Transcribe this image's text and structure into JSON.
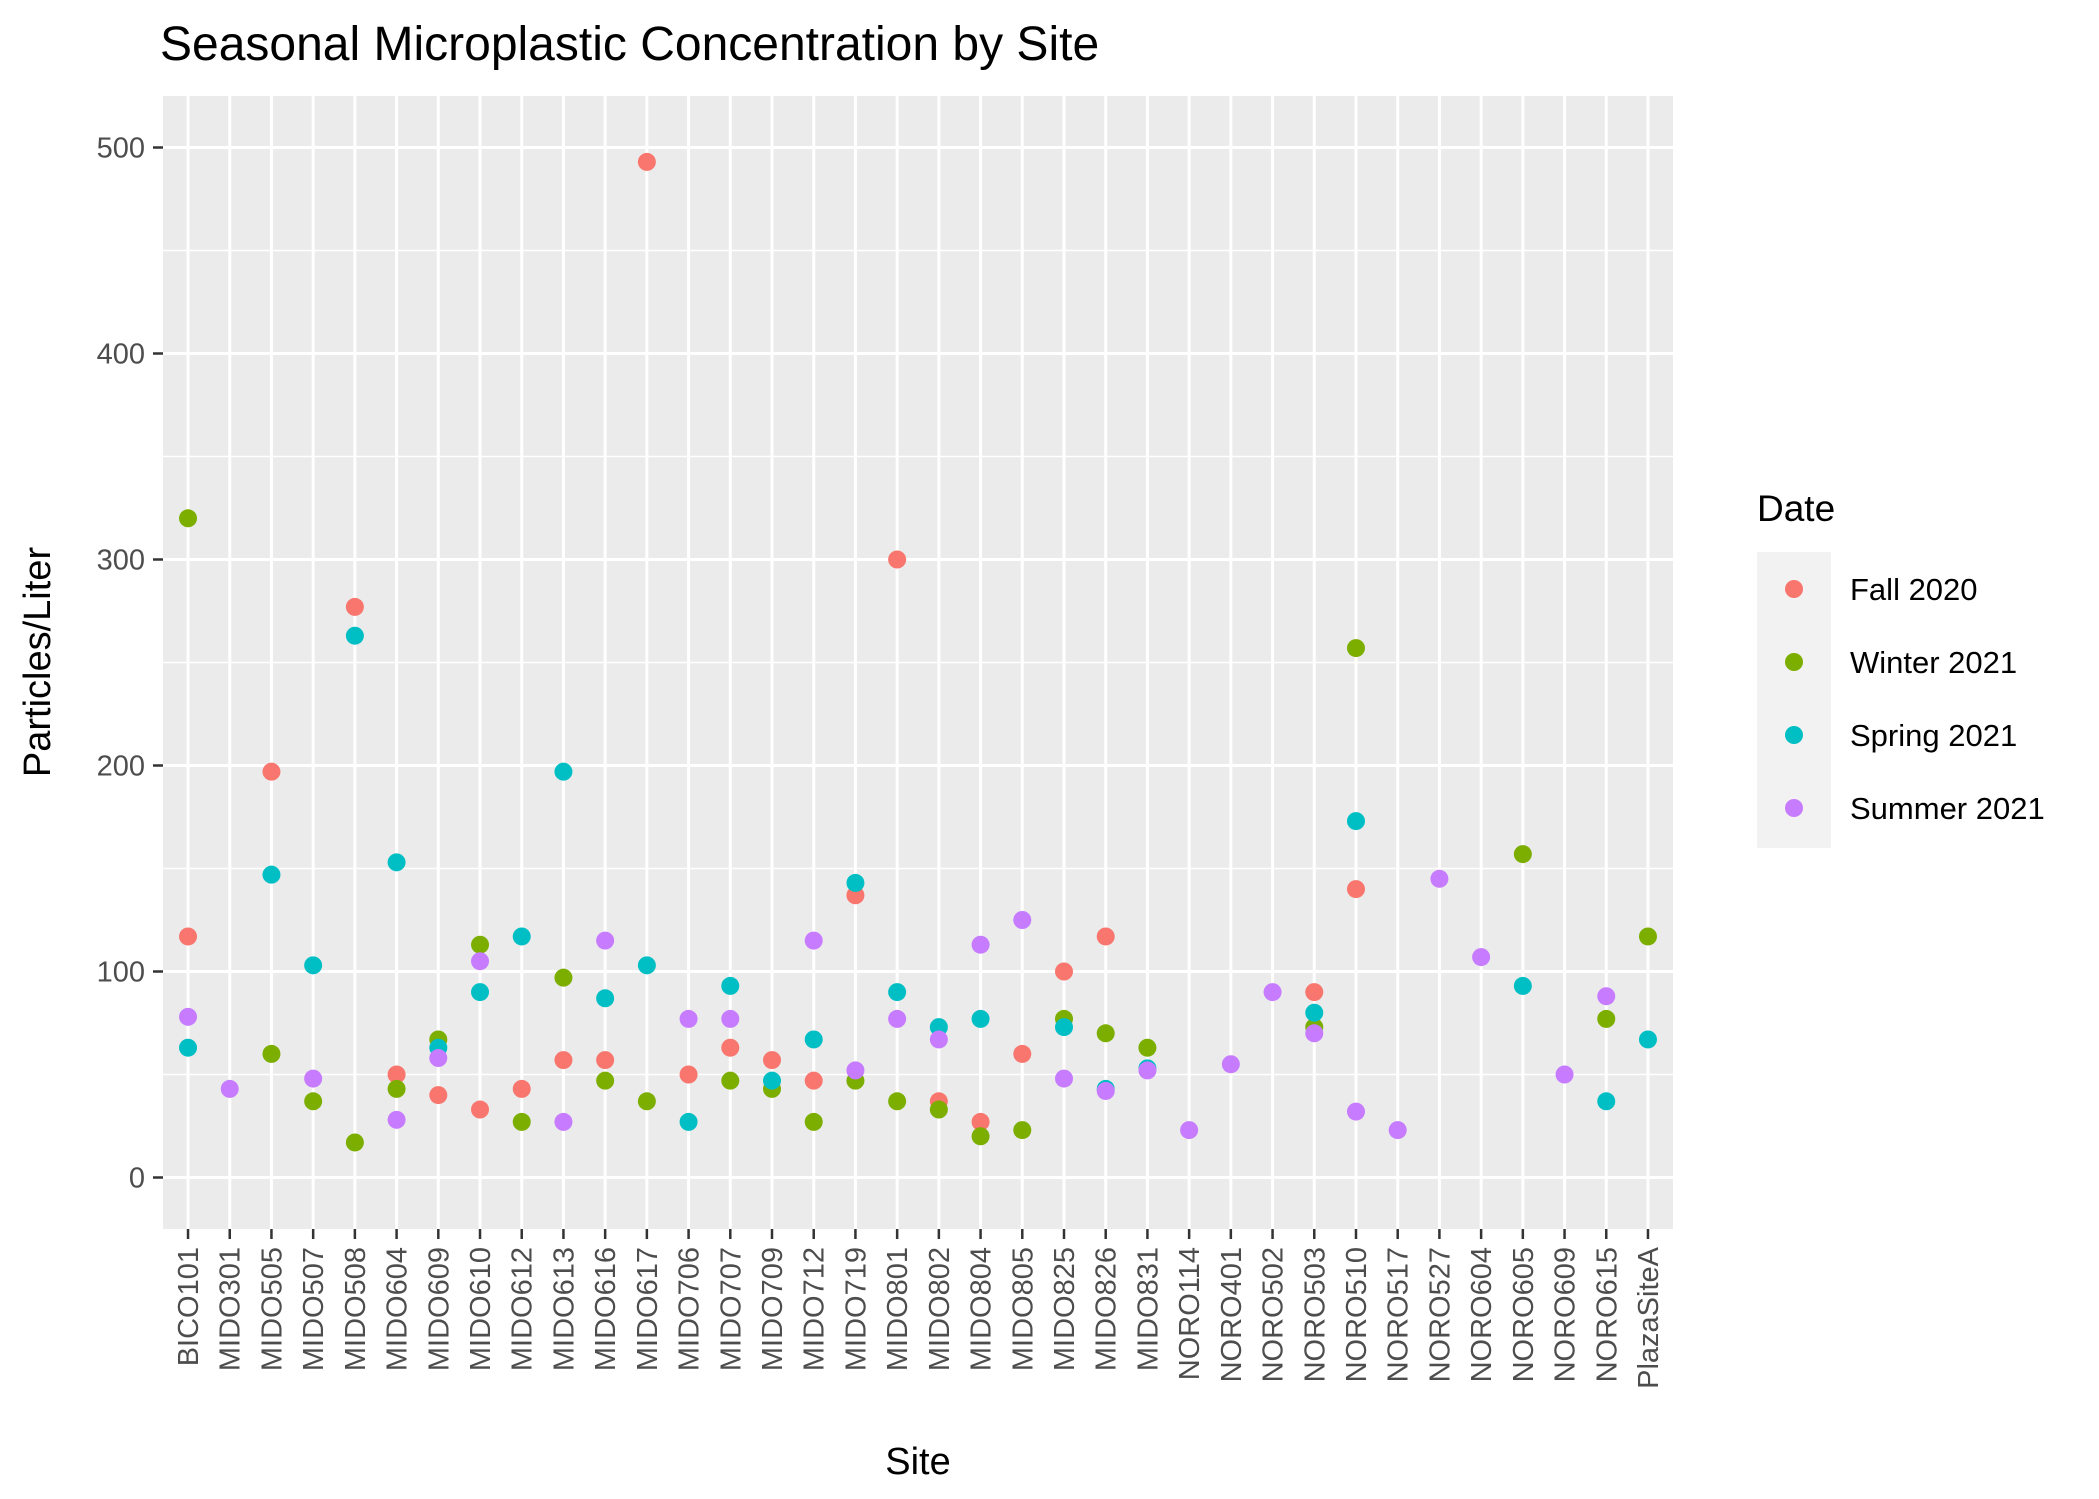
{
  "chart_data": {
    "type": "scatter",
    "title": "Seasonal Microplastic Concentration by Site",
    "xlabel": "Site",
    "ylabel": "Particles/Liter",
    "ylim": [
      -25,
      525
    ],
    "yticks": [
      0,
      100,
      200,
      300,
      400,
      500
    ],
    "grid": true,
    "legend": {
      "title": "Date",
      "position": "right"
    },
    "categories": [
      "BICO101",
      "MIDO301",
      "MIDO505",
      "MIDO507",
      "MIDO508",
      "MIDO604",
      "MIDO609",
      "MIDO610",
      "MIDO612",
      "MIDO613",
      "MIDO616",
      "MIDO617",
      "MIDO706",
      "MIDO707",
      "MIDO709",
      "MIDO712",
      "MIDO719",
      "MIDO801",
      "MIDO802",
      "MIDO804",
      "MIDO805",
      "MIDO825",
      "MIDO826",
      "MIDO831",
      "NORO114",
      "NORO401",
      "NORO502",
      "NORO503",
      "NORO510",
      "NORO517",
      "NORO527",
      "NORO604",
      "NORO605",
      "NORO609",
      "NORO615",
      "PlazaSiteA"
    ],
    "series": [
      {
        "name": "Fall 2020",
        "color": "#F8766D",
        "points": [
          [
            "BICO101",
            117
          ],
          [
            "MIDO505",
            197
          ],
          [
            "MIDO508",
            277
          ],
          [
            "MIDO604",
            50
          ],
          [
            "MIDO609",
            40
          ],
          [
            "MIDO610",
            33
          ],
          [
            "MIDO612",
            43
          ],
          [
            "MIDO613",
            57
          ],
          [
            "MIDO616",
            57
          ],
          [
            "MIDO617",
            493
          ],
          [
            "MIDO706",
            50
          ],
          [
            "MIDO707",
            63
          ],
          [
            "MIDO709",
            57
          ],
          [
            "MIDO712",
            47
          ],
          [
            "MIDO719",
            137
          ],
          [
            "MIDO801",
            300
          ],
          [
            "MIDO802",
            37
          ],
          [
            "MIDO804",
            27
          ],
          [
            "MIDO805",
            60
          ],
          [
            "MIDO825",
            100
          ],
          [
            "MIDO826",
            117
          ],
          [
            "NORO503",
            90
          ],
          [
            "NORO510",
            140
          ]
        ]
      },
      {
        "name": "Winter 2021",
        "color": "#7CAE00",
        "points": [
          [
            "BICO101",
            320
          ],
          [
            "MIDO505",
            60
          ],
          [
            "MIDO507",
            37
          ],
          [
            "MIDO508",
            17
          ],
          [
            "MIDO604",
            43
          ],
          [
            "MIDO609",
            67
          ],
          [
            "MIDO610",
            113
          ],
          [
            "MIDO612",
            27
          ],
          [
            "MIDO613",
            97
          ],
          [
            "MIDO616",
            47
          ],
          [
            "MIDO617",
            37
          ],
          [
            "MIDO707",
            47
          ],
          [
            "MIDO709",
            43
          ],
          [
            "MIDO712",
            27
          ],
          [
            "MIDO719",
            47
          ],
          [
            "MIDO801",
            37
          ],
          [
            "MIDO802",
            33
          ],
          [
            "MIDO804",
            20
          ],
          [
            "MIDO805",
            23
          ],
          [
            "MIDO825",
            77
          ],
          [
            "MIDO826",
            70
          ],
          [
            "MIDO831",
            63
          ],
          [
            "NORO503",
            73
          ],
          [
            "NORO510",
            257
          ],
          [
            "NORO605",
            157
          ],
          [
            "NORO615",
            77
          ],
          [
            "PlazaSiteA",
            117
          ]
        ]
      },
      {
        "name": "Spring 2021",
        "color": "#00BFC4",
        "points": [
          [
            "BICO101",
            63
          ],
          [
            "MIDO505",
            147
          ],
          [
            "MIDO507",
            103
          ],
          [
            "MIDO508",
            263
          ],
          [
            "MIDO604",
            153
          ],
          [
            "MIDO609",
            63
          ],
          [
            "MIDO610",
            90
          ],
          [
            "MIDO612",
            117
          ],
          [
            "MIDO613",
            197
          ],
          [
            "MIDO616",
            87
          ],
          [
            "MIDO617",
            103
          ],
          [
            "MIDO706",
            27
          ],
          [
            "MIDO707",
            93
          ],
          [
            "MIDO709",
            47
          ],
          [
            "MIDO712",
            67
          ],
          [
            "MIDO719",
            143
          ],
          [
            "MIDO801",
            90
          ],
          [
            "MIDO802",
            73
          ],
          [
            "MIDO804",
            77
          ],
          [
            "MIDO825",
            73
          ],
          [
            "MIDO826",
            43
          ],
          [
            "MIDO831",
            53
          ],
          [
            "NORO503",
            80
          ],
          [
            "NORO510",
            173
          ],
          [
            "NORO605",
            93
          ],
          [
            "NORO615",
            37
          ],
          [
            "PlazaSiteA",
            67
          ]
        ]
      },
      {
        "name": "Summer 2021",
        "color": "#C77CFF",
        "points": [
          [
            "BICO101",
            78
          ],
          [
            "MIDO301",
            43
          ],
          [
            "MIDO507",
            48
          ],
          [
            "MIDO604",
            28
          ],
          [
            "MIDO609",
            58
          ],
          [
            "MIDO610",
            105
          ],
          [
            "MIDO613",
            27
          ],
          [
            "MIDO616",
            115
          ],
          [
            "MIDO706",
            77
          ],
          [
            "MIDO707",
            77
          ],
          [
            "MIDO712",
            115
          ],
          [
            "MIDO719",
            52
          ],
          [
            "MIDO801",
            77
          ],
          [
            "MIDO802",
            67
          ],
          [
            "MIDO804",
            113
          ],
          [
            "MIDO805",
            125
          ],
          [
            "MIDO825",
            48
          ],
          [
            "MIDO826",
            42
          ],
          [
            "MIDO831",
            52
          ],
          [
            "NORO114",
            23
          ],
          [
            "NORO401",
            55
          ],
          [
            "NORO502",
            90
          ],
          [
            "NORO503",
            70
          ],
          [
            "NORO510",
            32
          ],
          [
            "NORO517",
            23
          ],
          [
            "NORO527",
            145
          ],
          [
            "NORO604",
            107
          ],
          [
            "NORO609",
            50
          ],
          [
            "NORO615",
            88
          ]
        ]
      }
    ]
  }
}
